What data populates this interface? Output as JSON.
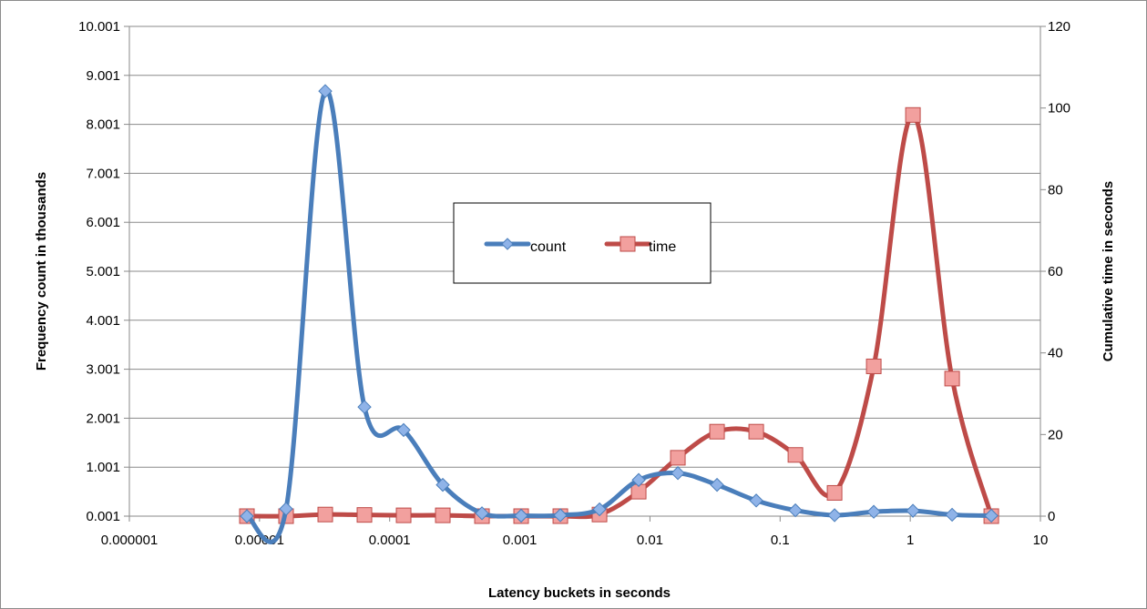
{
  "chart_data": {
    "type": "line",
    "xlabel": "Latency buckets in seconds",
    "ylabel": "Frequency count in thousands",
    "y2label": "Cumulative time in seconds",
    "x_scale": "log",
    "xlim": [
      1e-06,
      10
    ],
    "ylim": [
      0.001,
      10.001
    ],
    "y2lim": [
      0,
      120
    ],
    "x_ticks": [
      "0.000001",
      "0.00001",
      "0.0001",
      "0.001",
      "0.01",
      "0.1",
      "1",
      "10"
    ],
    "x_tick_values": [
      1e-06,
      1e-05,
      0.0001,
      0.001,
      0.01,
      0.1,
      1,
      10
    ],
    "y_ticks": [
      "0.001",
      "1.001",
      "2.001",
      "3.001",
      "4.001",
      "5.001",
      "6.001",
      "7.001",
      "8.001",
      "9.001",
      "10.001"
    ],
    "y_tick_values": [
      0.001,
      1.001,
      2.001,
      3.001,
      4.001,
      5.001,
      6.001,
      7.001,
      8.001,
      9.001,
      10.001
    ],
    "y2_ticks": [
      "0",
      "20",
      "40",
      "60",
      "80",
      "100",
      "120"
    ],
    "y2_tick_values": [
      0,
      20,
      40,
      60,
      80,
      100,
      120
    ],
    "grid": "horizontal",
    "legend_position": "center",
    "x": [
      8e-06,
      1.6e-05,
      3.2e-05,
      6.4e-05,
      0.000128,
      0.000256,
      0.000512,
      0.001024,
      0.002048,
      0.004096,
      0.008192,
      0.016384,
      0.032768,
      0.065536,
      0.131072,
      0.262144,
      0.524288,
      1.048576,
      2.097152,
      4.194304
    ],
    "series": [
      {
        "name": "count",
        "axis": "left",
        "color": "#4a7ebb",
        "marker": "diamond",
        "values": [
          0.001,
          0.15,
          8.68,
          2.23,
          1.76,
          0.64,
          0.06,
          0.01,
          0.02,
          0.14,
          0.74,
          0.88,
          0.64,
          0.32,
          0.12,
          0.02,
          0.09,
          0.11,
          0.03,
          0.01
        ]
      },
      {
        "name": "time",
        "axis": "right",
        "color": "#be4b48",
        "marker": "square",
        "values": [
          0,
          0,
          0.4,
          0.3,
          0.2,
          0.2,
          0,
          0,
          0,
          0.4,
          6,
          14.3,
          20.7,
          20.7,
          15,
          5.7,
          36.7,
          98.3,
          33.7,
          0
        ]
      }
    ]
  }
}
